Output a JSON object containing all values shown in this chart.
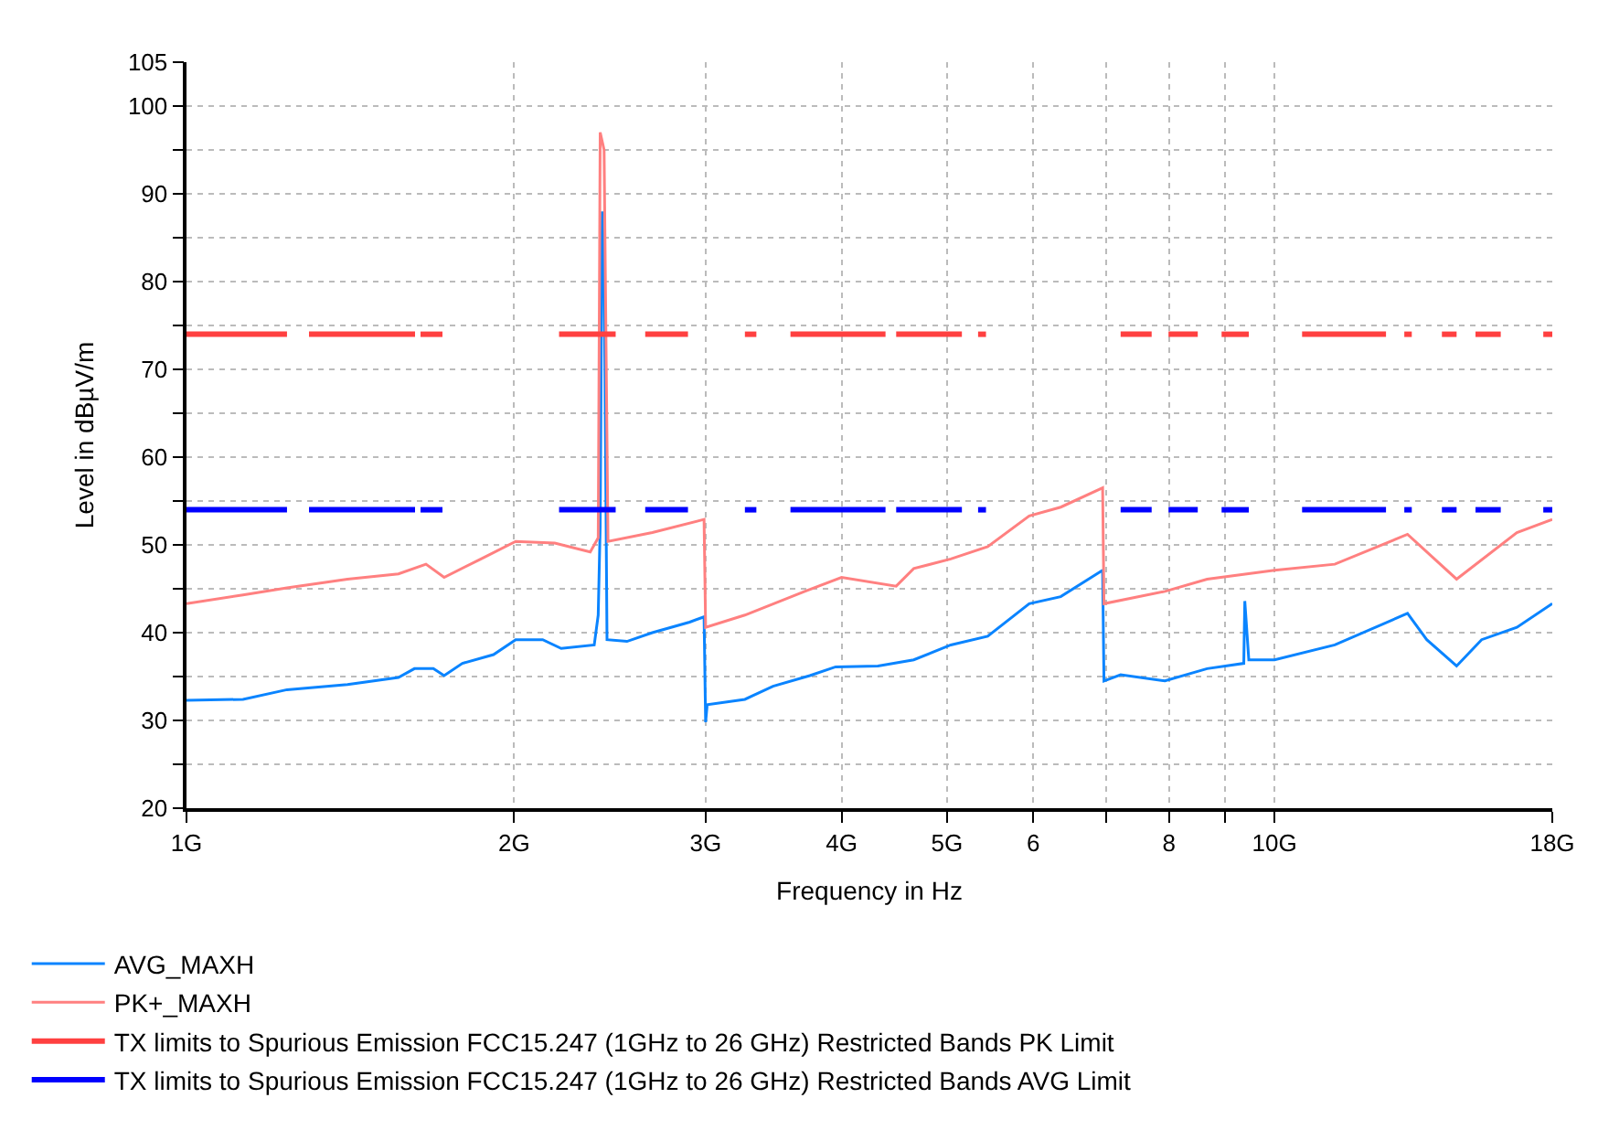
{
  "chart_data": {
    "type": "line",
    "xlabel": "Frequency in Hz",
    "ylabel": "Level in dBµV/m",
    "log": "x",
    "grid": true,
    "legend": "bottom left",
    "marker": "none",
    "line_style": "solid",
    "xlim": [
      1,
      18
    ],
    "ylim": [
      20,
      105
    ],
    "xticks": [
      {
        "value": 1,
        "label": "1G"
      },
      {
        "value": 2,
        "label": "2G"
      },
      {
        "value": 3,
        "label": "3G"
      },
      {
        "value": 4,
        "label": "4G"
      },
      {
        "value": 5,
        "label": "5G"
      },
      6,
      {
        "value": 7,
        "label": null
      },
      8,
      {
        "value": 9,
        "label": null
      },
      {
        "value": 10,
        "label": "10G"
      },
      {
        "value": 18,
        "label": "18G"
      }
    ],
    "yticks": [
      20,
      {
        "value": 25,
        "label": null
      },
      30,
      {
        "value": 35,
        "label": null
      },
      40,
      {
        "value": 45,
        "label": null
      },
      50,
      {
        "value": 55,
        "label": null
      },
      60,
      {
        "value": 65,
        "label": null
      },
      70,
      {
        "value": 75,
        "label": null
      },
      80,
      {
        "value": 85,
        "label": null
      },
      90,
      {
        "value": 95,
        "label": null
      },
      100,
      105
    ],
    "series": [
      {
        "name": "AVG_MAXH",
        "color": "#0a84ff",
        "x": [
          1.0,
          1.127,
          1.237,
          1.406,
          1.566,
          1.62,
          1.686,
          1.725,
          1.793,
          1.915,
          2.007,
          2.125,
          2.21,
          2.37,
          2.39,
          2.4,
          2.41,
          2.42,
          2.435,
          2.54,
          2.68,
          2.9,
          2.99,
          3.0,
          3.01,
          3.26,
          3.46,
          3.74,
          3.95,
          4.32,
          4.66,
          5.04,
          5.45,
          5.95,
          6.36,
          6.95,
          6.97,
          7.22,
          7.93,
          8.67,
          9.37,
          9.39,
          9.47,
          10.0,
          11.36,
          13.25,
          13.8,
          14.7,
          15.5,
          16.7,
          18.0
        ],
        "values": [
          32.3,
          32.4,
          33.5,
          34.1,
          34.9,
          35.9,
          35.9,
          35.1,
          36.5,
          37.5,
          39.2,
          39.2,
          38.2,
          38.6,
          42.0,
          52.2,
          88,
          82,
          39.2,
          39.0,
          40.0,
          41.2,
          41.8,
          29.8,
          31.8,
          32.4,
          33.9,
          35.1,
          36.1,
          36.2,
          36.9,
          38.6,
          39.6,
          43.3,
          44.1,
          47.1,
          34.5,
          35.2,
          34.5,
          35.9,
          36.5,
          43.6,
          36.9,
          36.9,
          38.6,
          42.2,
          39.2,
          36.2,
          39.2,
          40.6,
          43.3
        ]
      },
      {
        "name": "PK+_MAXH",
        "color": "#ff8080",
        "x": [
          1.0,
          1.127,
          1.237,
          1.406,
          1.566,
          1.66,
          1.725,
          1.865,
          2.007,
          2.18,
          2.35,
          2.39,
          2.4,
          2.42,
          2.44,
          2.68,
          2.99,
          3.0,
          3.26,
          3.7,
          4.0,
          4.49,
          4.66,
          5.04,
          5.45,
          5.95,
          6.36,
          6.95,
          6.97,
          7.93,
          8.67,
          10.0,
          11.36,
          13.25,
          14.7,
          16.7,
          18.0
        ],
        "values": [
          43.3,
          44.3,
          45.1,
          46.1,
          46.7,
          47.8,
          46.3,
          48.4,
          50.4,
          50.2,
          49.2,
          50.8,
          97,
          95,
          50.4,
          51.4,
          52.9,
          40.6,
          42.0,
          44.7,
          46.3,
          45.3,
          47.3,
          48.4,
          49.8,
          53.3,
          54.3,
          56.5,
          43.3,
          44.7,
          46.1,
          47.1,
          47.8,
          51.2,
          46.1,
          51.4,
          52.9
        ]
      },
      {
        "name": "TX limits to Spurious Emission FCC15.247 (1GHz to 26 GHz) Restricted Bands PK Limit",
        "color": "#ff4040",
        "x": [
          1.0,
          1.237,
          1.26,
          1.296,
          1.622,
          1.63,
          1.641,
          1.719,
          1.9,
          2.2,
          2.48,
          2.55,
          2.64,
          2.89,
          3.0,
          3.26,
          3.34,
          3.45,
          3.59,
          4.39,
          4.44,
          4.49,
          5.16,
          5.25,
          5.34,
          5.43,
          6.3,
          7.22,
          7.71,
          7.85,
          7.99,
          8.5,
          8.7,
          8.94,
          9.47,
          10.0,
          10.6,
          12.66,
          12.9,
          13.16,
          13.37,
          13.8,
          14.25,
          14.7,
          15.0,
          15.3,
          16.14,
          16.9,
          17.66,
          18.0
        ],
        "values": [
          74,
          74,
          null,
          74,
          74,
          null,
          74,
          74,
          null,
          74,
          74,
          null,
          74,
          74,
          null,
          74,
          74,
          null,
          74,
          74,
          null,
          74,
          74,
          null,
          74,
          74,
          null,
          74,
          74,
          null,
          74,
          74,
          null,
          74,
          74,
          null,
          74,
          74,
          null,
          74,
          74,
          null,
          74,
          74,
          null,
          74,
          74,
          null,
          74,
          74
        ]
      },
      {
        "name": "TX limits to Spurious Emission FCC15.247 (1GHz to 26 GHz) Restricted Bands AVG Limit",
        "color": "#0000ff",
        "x": [
          1.0,
          1.237,
          1.26,
          1.296,
          1.622,
          1.63,
          1.641,
          1.719,
          1.9,
          2.2,
          2.48,
          2.55,
          2.64,
          2.89,
          3.0,
          3.26,
          3.34,
          3.45,
          3.59,
          4.39,
          4.44,
          4.49,
          5.16,
          5.25,
          5.34,
          5.43,
          6.3,
          7.22,
          7.71,
          7.85,
          7.99,
          8.5,
          8.7,
          8.94,
          9.47,
          10.0,
          10.6,
          12.66,
          12.9,
          13.16,
          13.37,
          13.8,
          14.25,
          14.7,
          15.0,
          15.3,
          16.14,
          16.9,
          17.66,
          18.0
        ],
        "values": [
          54,
          54,
          null,
          54,
          54,
          null,
          54,
          54,
          null,
          54,
          54,
          null,
          54,
          54,
          null,
          54,
          54,
          null,
          54,
          54,
          null,
          54,
          54,
          null,
          54,
          54,
          null,
          54,
          54,
          null,
          54,
          54,
          null,
          54,
          54,
          null,
          54,
          54,
          null,
          54,
          54,
          null,
          54,
          54,
          null,
          54,
          54,
          null,
          54,
          54
        ]
      }
    ]
  }
}
